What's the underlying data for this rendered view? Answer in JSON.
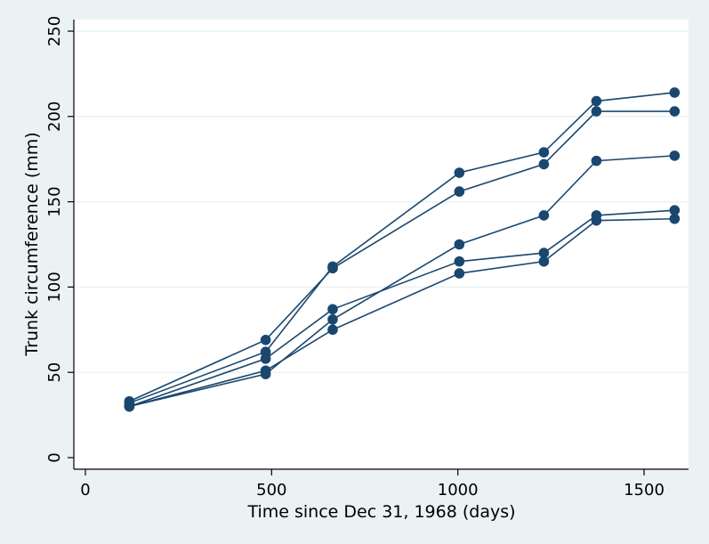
{
  "chart_data": {
    "type": "line",
    "xlabel": "Time since Dec 31, 1968 (days)",
    "ylabel": "Trunk circumference (mm)",
    "xlim": [
      0,
      1600
    ],
    "ylim": [
      0,
      250
    ],
    "xticks": [
      0,
      500,
      1000,
      1500
    ],
    "yticks": [
      0,
      50,
      100,
      150,
      200,
      250
    ],
    "grid": true,
    "legend": "none",
    "colors": {
      "series": "#1a476f",
      "grid": "#eaf2f3",
      "background": "#eaf2f3",
      "plot_background": "#ffffff"
    },
    "x": [
      118,
      484,
      664,
      1004,
      1231,
      1372,
      1582
    ],
    "series": [
      {
        "values": [
          30,
          58,
          87,
          115,
          120,
          142,
          145
        ]
      },
      {
        "values": [
          33,
          69,
          111,
          156,
          172,
          203,
          203
        ]
      },
      {
        "values": [
          30,
          51,
          75,
          108,
          115,
          139,
          140
        ]
      },
      {
        "values": [
          32,
          62,
          112,
          167,
          179,
          209,
          214
        ]
      },
      {
        "values": [
          30,
          49,
          81,
          125,
          142,
          174,
          177
        ]
      }
    ]
  }
}
